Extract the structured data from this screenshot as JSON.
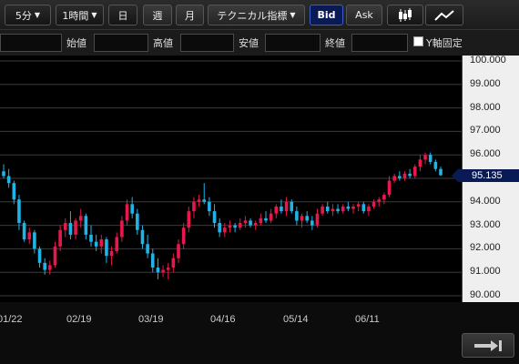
{
  "toolbar": {
    "interval_value": "5分",
    "period_value": "1時間",
    "day_label": "日",
    "week_label": "週",
    "month_label": "月",
    "technical_label": "テクニカル指標",
    "bid_label": "Bid",
    "ask_label": "Ask",
    "chart_type_icons": [
      "candlestick-icon",
      "line-chart-icon"
    ],
    "active_quote": "Bid"
  },
  "ohlc": {
    "open_label": "始値",
    "high_label": "高値",
    "low_label": "安値",
    "close_label": "終値",
    "open_value": "",
    "high_value": "",
    "low_value": "",
    "close_value": "",
    "yaxis_fixed_label": "Y軸固定",
    "yaxis_fixed_checked": false
  },
  "chart_data": {
    "type": "candlestick",
    "y_ticks": [
      "100.000",
      "99.000",
      "98.000",
      "97.000",
      "96.000",
      "95.000",
      "94.000",
      "93.000",
      "92.000",
      "91.000",
      "90.000"
    ],
    "y_tick_values": [
      100,
      99,
      98,
      97,
      96,
      95,
      94,
      93,
      92,
      91,
      90
    ],
    "ylim": [
      90,
      100
    ],
    "x_ticks": [
      "01/22",
      "02/19",
      "03/19",
      "04/16",
      "05/14",
      "06/11"
    ],
    "current_price_label": "95.135",
    "current_price": 95.135,
    "colors": {
      "up": "#e8174c",
      "down": "#1fb3e8",
      "price_tag": "#0a1a55"
    },
    "grid": true,
    "candles": [
      [
        95.3,
        95.6,
        95.0,
        95.1
      ],
      [
        95.1,
        95.4,
        94.6,
        94.8
      ],
      [
        94.8,
        94.9,
        93.9,
        94.1
      ],
      [
        94.1,
        94.3,
        92.8,
        93.1
      ],
      [
        93.1,
        93.2,
        92.3,
        92.4
      ],
      [
        92.4,
        92.9,
        92.2,
        92.7
      ],
      [
        92.7,
        92.8,
        91.8,
        92.0
      ],
      [
        92.0,
        92.1,
        91.2,
        91.4
      ],
      [
        91.4,
        91.6,
        90.9,
        91.1
      ],
      [
        91.1,
        91.5,
        90.9,
        91.3
      ],
      [
        91.3,
        92.3,
        91.2,
        92.1
      ],
      [
        92.1,
        93.0,
        91.9,
        92.8
      ],
      [
        92.8,
        93.3,
        92.5,
        93.1
      ],
      [
        93.1,
        93.6,
        92.4,
        92.6
      ],
      [
        92.6,
        93.3,
        92.4,
        93.2
      ],
      [
        93.2,
        93.7,
        92.9,
        93.4
      ],
      [
        93.4,
        93.5,
        92.4,
        92.6
      ],
      [
        92.6,
        93.0,
        92.1,
        92.3
      ],
      [
        92.3,
        92.6,
        91.9,
        92.1
      ],
      [
        92.1,
        92.6,
        91.8,
        92.4
      ],
      [
        92.4,
        92.5,
        91.4,
        91.7
      ],
      [
        91.7,
        92.1,
        91.3,
        91.9
      ],
      [
        91.9,
        92.7,
        91.8,
        92.5
      ],
      [
        92.5,
        93.4,
        92.3,
        93.2
      ],
      [
        93.2,
        94.1,
        93.0,
        93.9
      ],
      [
        93.9,
        94.2,
        93.3,
        93.5
      ],
      [
        93.5,
        93.7,
        92.6,
        92.8
      ],
      [
        92.8,
        93.0,
        92.0,
        92.2
      ],
      [
        92.2,
        92.6,
        91.6,
        91.8
      ],
      [
        91.8,
        92.0,
        91.0,
        91.2
      ],
      [
        91.2,
        91.6,
        90.7,
        91.0
      ],
      [
        91.0,
        91.3,
        90.8,
        91.1
      ],
      [
        91.1,
        91.4,
        90.7,
        91.2
      ],
      [
        91.2,
        91.8,
        91.0,
        91.6
      ],
      [
        91.6,
        92.4,
        91.4,
        92.2
      ],
      [
        92.2,
        93.1,
        92.0,
        92.9
      ],
      [
        92.9,
        93.8,
        92.7,
        93.6
      ],
      [
        93.6,
        94.2,
        93.3,
        94.0
      ],
      [
        94.0,
        94.3,
        93.8,
        94.1
      ],
      [
        94.1,
        94.8,
        93.9,
        94.0
      ],
      [
        94.0,
        94.2,
        93.4,
        93.6
      ],
      [
        93.6,
        93.9,
        92.9,
        93.1
      ],
      [
        93.1,
        93.3,
        92.5,
        92.7
      ],
      [
        92.7,
        93.1,
        92.5,
        92.9
      ],
      [
        92.9,
        93.2,
        92.7,
        93.0
      ],
      [
        93.0,
        93.1,
        92.7,
        92.9
      ],
      [
        92.9,
        93.3,
        92.8,
        93.1
      ],
      [
        93.1,
        93.4,
        92.9,
        93.2
      ],
      [
        93.2,
        93.3,
        92.9,
        93.0
      ],
      [
        93.0,
        93.2,
        92.8,
        93.1
      ],
      [
        93.1,
        93.5,
        93.0,
        93.3
      ],
      [
        93.3,
        93.6,
        93.1,
        93.2
      ],
      [
        93.2,
        93.7,
        93.1,
        93.5
      ],
      [
        93.5,
        93.9,
        93.3,
        93.8
      ],
      [
        93.8,
        94.1,
        93.5,
        93.6
      ],
      [
        93.6,
        94.2,
        93.4,
        94.0
      ],
      [
        94.0,
        94.1,
        93.5,
        93.6
      ],
      [
        93.6,
        93.8,
        93.0,
        93.2
      ],
      [
        93.2,
        93.5,
        92.9,
        93.4
      ],
      [
        93.4,
        93.6,
        93.1,
        93.2
      ],
      [
        93.2,
        93.4,
        92.8,
        93.0
      ],
      [
        93.0,
        93.7,
        92.9,
        93.5
      ],
      [
        93.5,
        93.9,
        93.4,
        93.8
      ],
      [
        93.8,
        94.0,
        93.5,
        93.6
      ],
      [
        93.6,
        93.9,
        93.4,
        93.7
      ],
      [
        93.7,
        93.9,
        93.5,
        93.6
      ],
      [
        93.6,
        93.9,
        93.5,
        93.8
      ],
      [
        93.8,
        94.0,
        93.6,
        93.7
      ],
      [
        93.7,
        93.9,
        93.5,
        93.8
      ],
      [
        93.8,
        94.0,
        93.6,
        93.9
      ],
      [
        93.9,
        94.0,
        93.5,
        93.6
      ],
      [
        93.6,
        93.9,
        93.4,
        93.8
      ],
      [
        93.8,
        94.1,
        93.7,
        94.0
      ],
      [
        94.0,
        94.2,
        93.8,
        94.1
      ],
      [
        94.1,
        94.4,
        93.9,
        94.3
      ],
      [
        94.3,
        95.1,
        94.2,
        94.9
      ],
      [
        94.9,
        95.2,
        94.8,
        95.1
      ],
      [
        95.1,
        95.3,
        94.9,
        95.0
      ],
      [
        95.0,
        95.3,
        94.9,
        95.2
      ],
      [
        95.2,
        95.4,
        95.0,
        95.1
      ],
      [
        95.1,
        95.6,
        95.0,
        95.5
      ],
      [
        95.5,
        96.0,
        95.3,
        95.8
      ],
      [
        95.8,
        96.1,
        95.6,
        96.0
      ],
      [
        96.0,
        96.1,
        95.6,
        95.7
      ],
      [
        95.7,
        95.8,
        95.3,
        95.4
      ],
      [
        95.4,
        95.5,
        95.1,
        95.135
      ]
    ]
  },
  "bottom": {
    "forward_icon": "jump-to-latest-icon"
  }
}
